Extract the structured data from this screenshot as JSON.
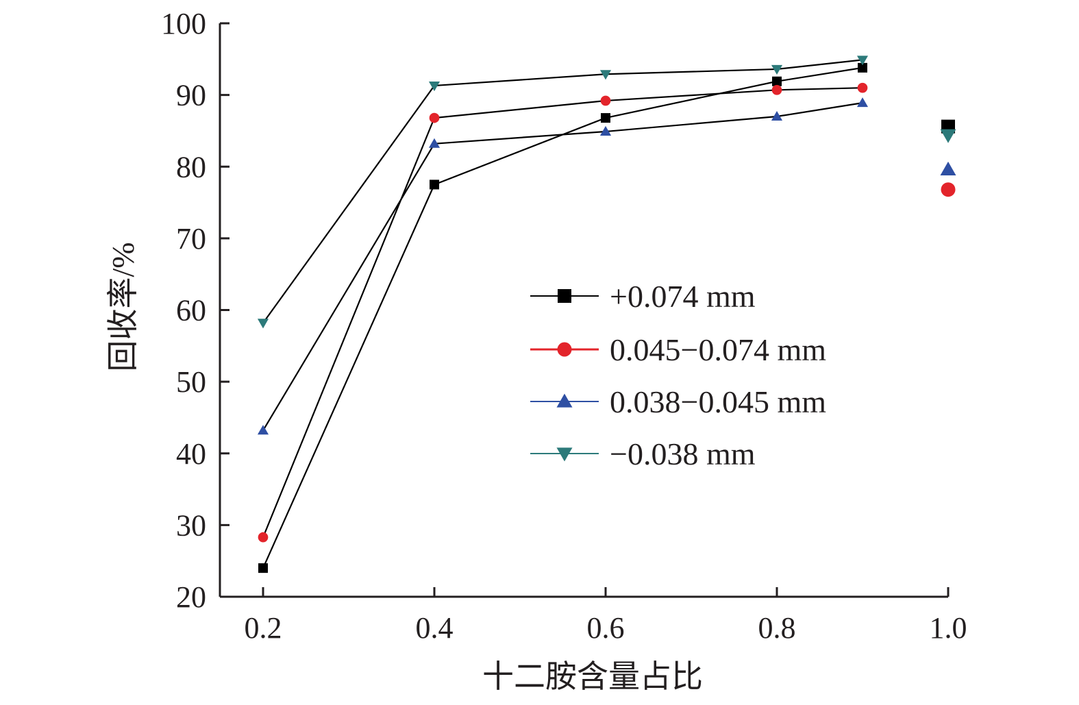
{
  "chart_data": {
    "type": "line",
    "title": "",
    "xlabel": "十二胺含量占比",
    "ylabel": "回收率/%",
    "xlim": [
      0.15,
      1.0
    ],
    "ylim": [
      20,
      100
    ],
    "x_ticks": [
      "0.2",
      "0.4",
      "0.6",
      "0.8",
      "1.0"
    ],
    "y_ticks": [
      "20",
      "30",
      "40",
      "50",
      "60",
      "70",
      "80",
      "90",
      "100"
    ],
    "legend_position": "center-right",
    "grid": false,
    "series": [
      {
        "name": "+0.074 mm",
        "color": "#000000",
        "marker": "square",
        "x": [
          0.2,
          0.4,
          0.6,
          0.8,
          0.9
        ],
        "y": [
          24.0,
          77.5,
          86.8,
          91.9,
          93.8
        ],
        "extra_point": {
          "x": 1.0,
          "y": 85.6
        }
      },
      {
        "name": "0.045−0.074 mm",
        "color": "#e3242b",
        "marker": "circle",
        "x": [
          0.2,
          0.4,
          0.6,
          0.8,
          0.9
        ],
        "y": [
          28.3,
          86.8,
          89.2,
          90.7,
          91.0
        ],
        "extra_point": {
          "x": 1.0,
          "y": 76.8
        }
      },
      {
        "name": "0.038−0.045 mm",
        "color": "#2e4fa3",
        "marker": "triangle-up",
        "x": [
          0.2,
          0.4,
          0.6,
          0.8,
          0.9
        ],
        "y": [
          43.2,
          83.2,
          84.9,
          87.0,
          88.9
        ],
        "extra_point": {
          "x": 1.0,
          "y": 79.6
        }
      },
      {
        "name": "−0.038 mm",
        "color": "#2c7a7a",
        "marker": "triangle-down",
        "x": [
          0.2,
          0.4,
          0.6,
          0.8,
          0.9
        ],
        "y": [
          58.2,
          91.3,
          92.9,
          93.6,
          94.9
        ],
        "extra_point": {
          "x": 1.0,
          "y": 84.4
        }
      }
    ]
  }
}
